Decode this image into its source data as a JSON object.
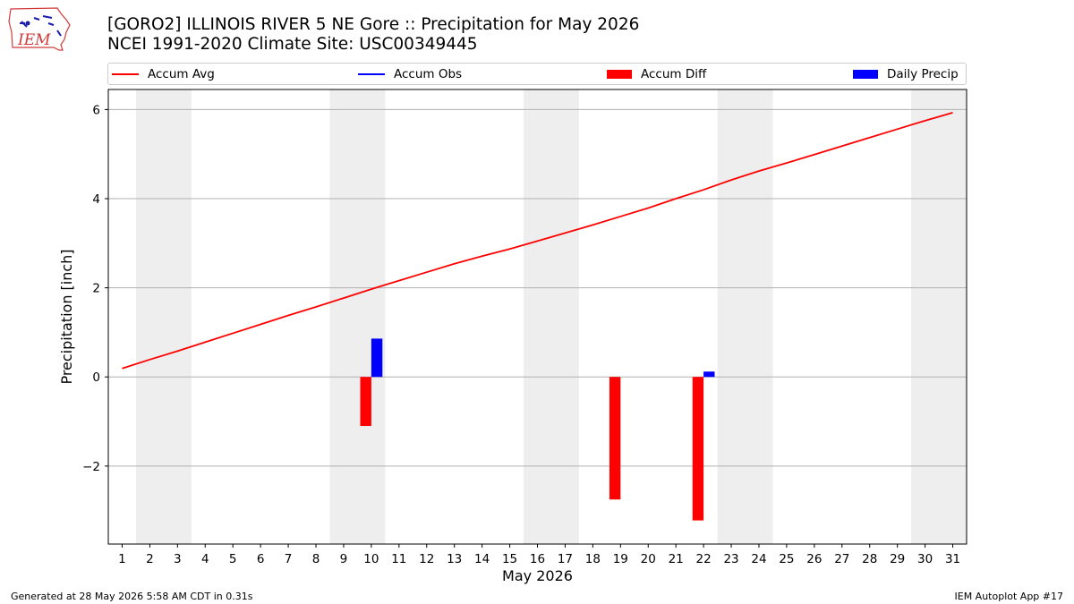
{
  "header": {
    "title_line1": "[GORO2] ILLINOIS RIVER 5 NE Gore :: Precipitation for May 2026",
    "title_line2": "NCEI 1991-2020 Climate Site: USC00349445",
    "logo_text": "IEM"
  },
  "legend": {
    "items": [
      {
        "label": "Accum Avg",
        "kind": "line",
        "color": "#ff0000"
      },
      {
        "label": "Accum Obs",
        "kind": "line",
        "color": "#0000ff"
      },
      {
        "label": "Accum Diff",
        "kind": "bar",
        "color": "#ff0000"
      },
      {
        "label": "Daily Precip",
        "kind": "bar",
        "color": "#0000ff"
      }
    ]
  },
  "footer": {
    "left": "Generated at 28 May 2026 5:58 AM CDT in 0.31s",
    "right": "IEM Autoplot App #17"
  },
  "chart_data": {
    "type": "bar",
    "xlabel": "May 2026",
    "ylabel": "Precipitation [inch]",
    "xlim": [
      0.5,
      31.5
    ],
    "ylim": [
      -3.75,
      6.45
    ],
    "yticks": [
      -2,
      0,
      2,
      4,
      6
    ],
    "ytick_labels": [
      "−2",
      "0",
      "2",
      "4",
      "6"
    ],
    "xticks": [
      1,
      2,
      3,
      4,
      5,
      6,
      7,
      8,
      9,
      10,
      11,
      12,
      13,
      14,
      15,
      16,
      17,
      18,
      19,
      20,
      21,
      22,
      23,
      24,
      25,
      26,
      27,
      28,
      29,
      30,
      31
    ],
    "grid": "y",
    "weekend_shading": [
      [
        1.5,
        3.5
      ],
      [
        8.5,
        10.5
      ],
      [
        15.5,
        17.5
      ],
      [
        22.5,
        24.5
      ],
      [
        29.5,
        31.5
      ]
    ],
    "series": [
      {
        "name": "Accum Avg",
        "kind": "line",
        "color": "#ff0000",
        "x": [
          1,
          2,
          3,
          4,
          5,
          6,
          7,
          8,
          9,
          10,
          11,
          12,
          13,
          14,
          15,
          16,
          17,
          18,
          19,
          20,
          21,
          22,
          23,
          24,
          25,
          26,
          27,
          28,
          29,
          30,
          31
        ],
        "values": [
          0.19,
          0.39,
          0.58,
          0.78,
          0.98,
          1.18,
          1.38,
          1.57,
          1.77,
          1.97,
          2.16,
          2.35,
          2.54,
          2.71,
          2.87,
          3.05,
          3.23,
          3.41,
          3.6,
          3.79,
          4.0,
          4.2,
          4.42,
          4.62,
          4.8,
          4.99,
          5.18,
          5.37,
          5.56,
          5.75,
          5.93
        ]
      },
      {
        "name": "Accum Diff",
        "kind": "bar",
        "color": "#ff0000",
        "x": [
          10,
          19,
          22
        ],
        "values": [
          -1.1,
          -2.75,
          -3.22
        ]
      },
      {
        "name": "Daily Precip",
        "kind": "bar",
        "color": "#0000ff",
        "x": [
          10,
          22
        ],
        "values": [
          0.86,
          0.12
        ]
      }
    ]
  }
}
